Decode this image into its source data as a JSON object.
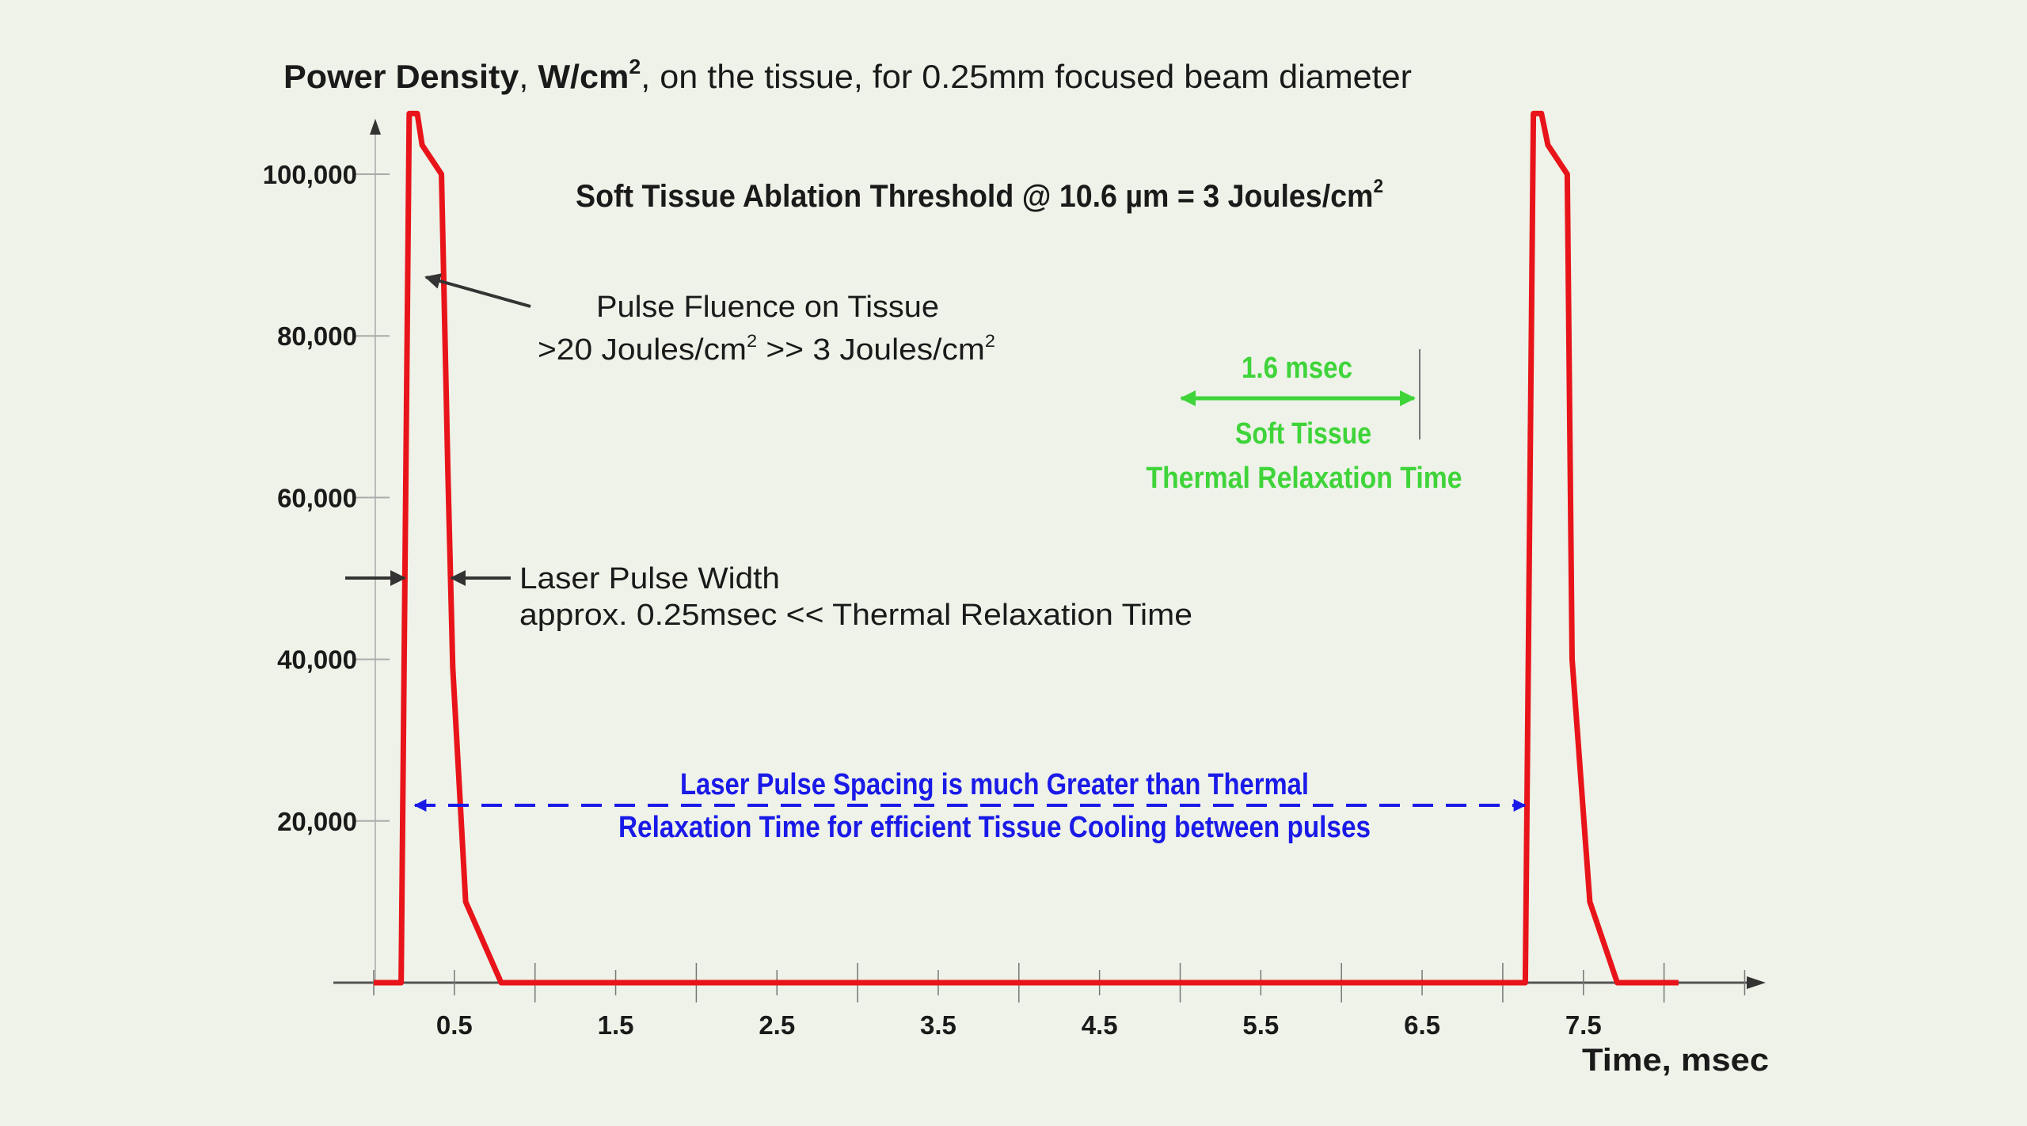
{
  "chart_data": {
    "type": "line",
    "title_parts": {
      "a": "Power Density",
      "b": ", ",
      "c": "W/cm",
      "sup": "2",
      "d": ", on the tissue, for 0.25mm focused beam diameter"
    },
    "xlabel": "Time, msec",
    "ylabel": "Power Density, W/cm2",
    "xlim": [
      0,
      8.5
    ],
    "ylim": [
      0,
      110000
    ],
    "y_ticks": [
      20000,
      40000,
      60000,
      80000,
      100000
    ],
    "y_tick_labels": [
      "20,000",
      "40,000",
      "60,000",
      "80,000",
      "100,000"
    ],
    "x_ticks": [
      0.5,
      1.5,
      2.5,
      3.5,
      4.5,
      5.5,
      6.5,
      7.5
    ],
    "x_tick_labels": [
      "0.5",
      "1.5",
      "2.5",
      "3.5",
      "4.5",
      "5.5",
      "6.5",
      "7.5"
    ],
    "grid": false,
    "colors": {
      "series": "#e8141a",
      "green": "#3fd43a",
      "blue": "#1a1ae8",
      "axis": "#555555",
      "annotation": "#1a1a1a"
    },
    "series": [
      {
        "name": "Laser pulse power density",
        "x": [
          0,
          0.17,
          0.22,
          0.27,
          0.3,
          0.42,
          0.46,
          0.49,
          0.57,
          0.79,
          7.14,
          7.19,
          7.24,
          7.28,
          7.4,
          7.43,
          7.54,
          7.71,
          8.09
        ],
        "y": [
          0,
          0,
          107500,
          107500,
          103600,
          100000,
          63000,
          39000,
          10000,
          0,
          0,
          107500,
          107500,
          103600,
          100000,
          40000,
          10000,
          0,
          0
        ]
      }
    ],
    "annotations": {
      "threshold": {
        "text": "Soft Tissue Ablation Threshold @ 10.6 µm = 3 Joules/cm",
        "sup": "2"
      },
      "fluence": {
        "line1": "Pulse Fluence on Tissue",
        "l2a": ">20 Joules/cm",
        "l2sup1": "2",
        "l2b": " >> 3 Joules/cm",
        "l2sup2": "2"
      },
      "pulse_width": {
        "line1": "Laser Pulse Width",
        "line2": "approx. 0.25msec << Thermal Relaxation Time"
      },
      "relaxation": {
        "value": "1.6 msec",
        "line1": "Soft Tissue",
        "line2": "Thermal Relaxation Time"
      },
      "spacing": {
        "line1": "Laser Pulse Spacing is much Greater than Thermal",
        "line2": "Relaxation Time for efficient Tissue Cooling between pulses"
      }
    }
  }
}
